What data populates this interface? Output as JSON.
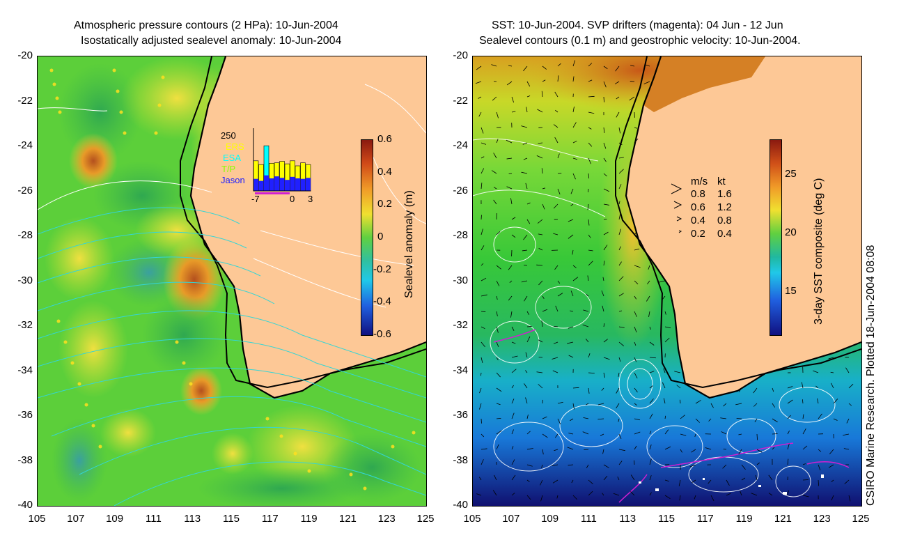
{
  "left_panel": {
    "title_line1": "Atmospheric pressure contours (2 HPa): 10-Jun-2004",
    "title_line2": "Isostatically adjusted sealevel anomaly: 10-Jun-2004",
    "yticks": [
      "-20",
      "-22",
      "-24",
      "-26",
      "-28",
      "-30",
      "-32",
      "-34",
      "-36",
      "-38",
      "-40"
    ],
    "xticks": [
      "105",
      "107",
      "109",
      "111",
      "113",
      "115",
      "117",
      "119",
      "121",
      "123",
      "125"
    ],
    "colorbar": {
      "label": "Sealevel anomaly (m)",
      "ticks": [
        "0.6",
        "0.4",
        "0.2",
        "0",
        "-0.2",
        "-0.4",
        "-0.6"
      ]
    },
    "inset": {
      "ymax_label": "250",
      "legend": [
        "ERS",
        "ESA",
        "T/P",
        "Jason"
      ],
      "legend_colors": [
        "#ffff00",
        "#00ffff",
        "#88ff00",
        "#2020ff"
      ],
      "xlabels": [
        "-7",
        "0",
        "3"
      ],
      "bars_total": [
        120,
        105,
        180,
        110,
        112,
        118,
        108,
        120,
        100,
        112,
        105
      ],
      "bars_jason": [
        48,
        40,
        62,
        50,
        58,
        52,
        44,
        56,
        50,
        48,
        52
      ]
    }
  },
  "right_panel": {
    "title_line1": "SST: 10-Jun-2004. SVP drifters (magenta): 04 Jun - 12 Jun",
    "title_line2": "Sealevel contours (0.1 m) and geostrophic velocity: 10-Jun-2004.",
    "yticks": [
      "-20",
      "-22",
      "-24",
      "-26",
      "-28",
      "-30",
      "-32",
      "-34",
      "-36",
      "-38",
      "-40"
    ],
    "xticks": [
      "105",
      "107",
      "109",
      "111",
      "113",
      "115",
      "117",
      "119",
      "121",
      "123",
      "125"
    ],
    "colorbar": {
      "label": "3-day SST composite (deg C)",
      "ticks": [
        "25",
        "20",
        "15"
      ]
    },
    "velocity_legend": {
      "header_ms": "m/s",
      "header_kt": "kt",
      "rows": [
        {
          "ms": "0.8",
          "kt": "1.6"
        },
        {
          "ms": "0.6",
          "kt": "1.2"
        },
        {
          "ms": "0.4",
          "kt": "0.8"
        },
        {
          "ms": "0.2",
          "kt": "0.4"
        }
      ]
    }
  },
  "credit": "CSIRO Marine Research. Plotted 18-Jun-2004 08:08",
  "colors": {
    "land": "#fdc896",
    "ocean_green": "#3fc83a",
    "coast": "#000000"
  }
}
